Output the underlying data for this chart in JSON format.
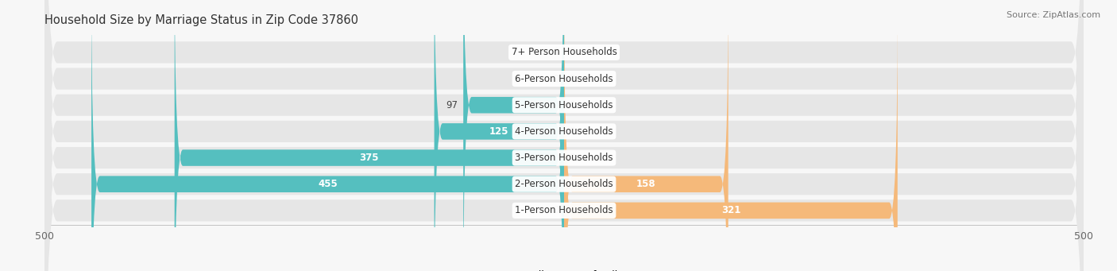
{
  "title": "Household Size by Marriage Status in Zip Code 37860",
  "source": "Source: ZipAtlas.com",
  "categories": [
    "7+ Person Households",
    "6-Person Households",
    "5-Person Households",
    "4-Person Households",
    "3-Person Households",
    "2-Person Households",
    "1-Person Households"
  ],
  "family": [
    0,
    0,
    97,
    125,
    375,
    455,
    0
  ],
  "nonfamily": [
    0,
    0,
    0,
    0,
    0,
    158,
    321
  ],
  "family_color": "#55bfbf",
  "nonfamily_color": "#f5b97a",
  "xlim": 500,
  "row_bg_color": "#e6e6e6",
  "fig_bg_color": "#f7f7f7",
  "bar_height": 0.62,
  "label_fontsize": 8.5,
  "title_fontsize": 10.5,
  "source_fontsize": 8
}
